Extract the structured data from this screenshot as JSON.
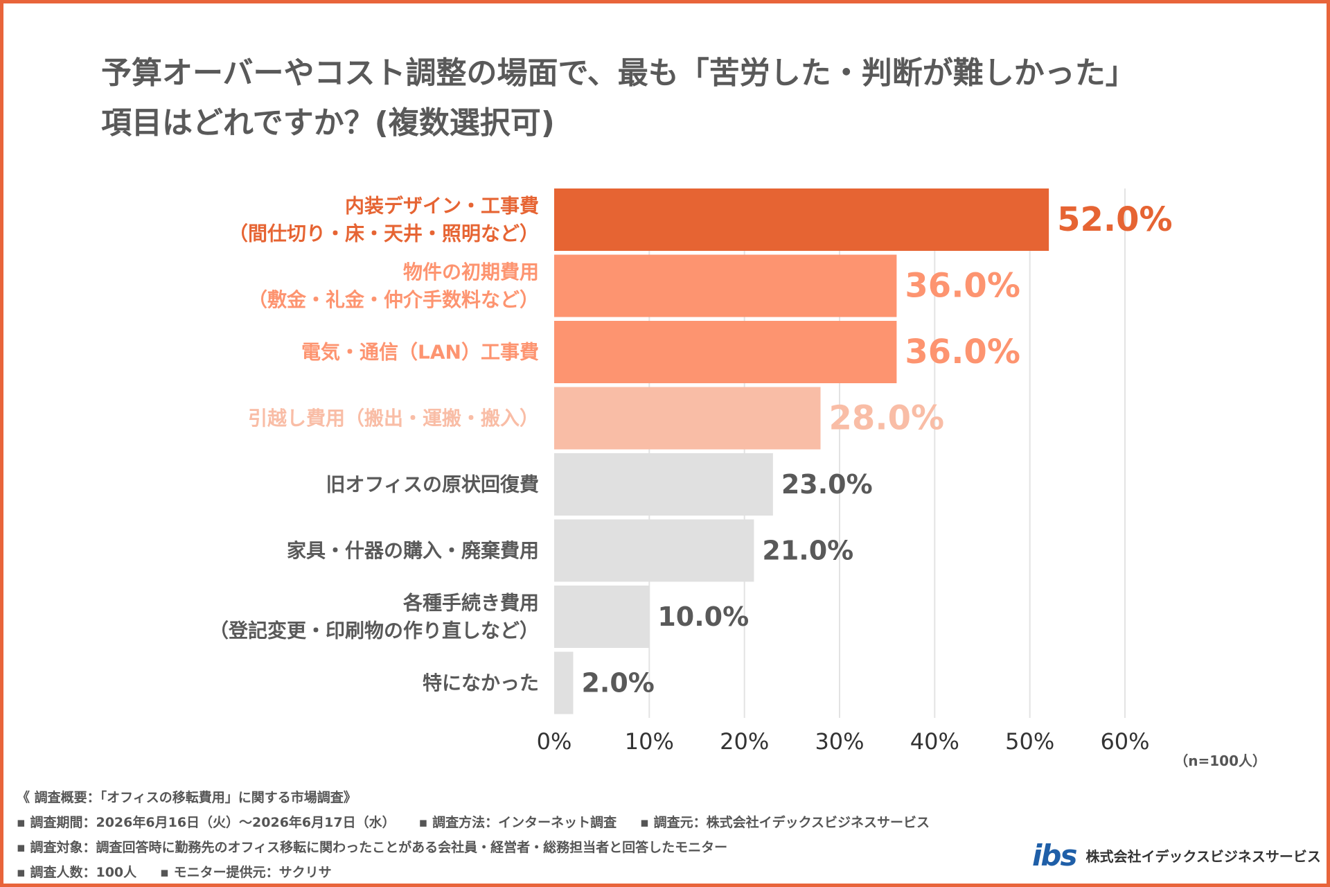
{
  "title": {
    "line1": "予算オーバーやコスト調整の場面で、最も「苦労した・判断が難しかった」",
    "line2": "項目はどれですか？(複数選択可)"
  },
  "chart_data": {
    "type": "bar",
    "orientation": "horizontal",
    "categories": [
      [
        "内装デザイン・工事費",
        "（間仕切り・床・天井・照明など）"
      ],
      [
        "物件の初期費用",
        "（敷金・礼金・仲介手数料など）"
      ],
      [
        "電気・通信（LAN）工事費"
      ],
      [
        "引越し費用（搬出・運搬・搬入）"
      ],
      [
        "旧オフィスの原状回復費"
      ],
      [
        "家具・什器の購入・廃棄費用"
      ],
      [
        "各種手続き費用",
        "（登記変更・印刷物の作り直しなど）"
      ],
      [
        "特になかった"
      ]
    ],
    "values": [
      52.0,
      36.0,
      36.0,
      28.0,
      23.0,
      21.0,
      10.0,
      2.0
    ],
    "value_labels": [
      "52.0%",
      "36.0%",
      "36.0%",
      "28.0%",
      "23.0%",
      "21.0%",
      "10.0%",
      "2.0%"
    ],
    "bar_colors": [
      "#e66433",
      "#fd9470",
      "#fd9470",
      "#f9bda6",
      "#e0e0e0",
      "#e0e0e0",
      "#e0e0e0",
      "#e0e0e0"
    ],
    "label_colors": [
      "#e66433",
      "#fd9470",
      "#fd9470",
      "#f9bda6",
      "#595959",
      "#595959",
      "#595959",
      "#595959"
    ],
    "xlim": [
      0,
      60
    ],
    "xticks": [
      0,
      10,
      20,
      30,
      40,
      50,
      60
    ],
    "xtick_labels": [
      "0%",
      "10%",
      "20%",
      "30%",
      "40%",
      "50%",
      "60%"
    ],
    "grid": true,
    "note": "（n=100人）"
  },
  "footer": {
    "heading": "《 調査概要：「オフィスの移転費用」に関する市場調査》",
    "period": "▪ 調査期間：2026年6月16日（火）〜2026年6月17日（水）",
    "method": "▪ 調査方法：インターネット調査",
    "source": "▪ 調査元：株式会社イデックスビジネスサービス",
    "target": "▪ 調査対象：調査回答時に勤務先のオフィス移転に関わったことがある会社員・経営者・総務担当者と回答したモニター",
    "count": "▪ 調査人数：100人",
    "monitor": "▪ モニター提供元：サクリサ"
  },
  "brand": {
    "logo": "ibs",
    "name": "株式会社イデックスビジネスサービス"
  }
}
